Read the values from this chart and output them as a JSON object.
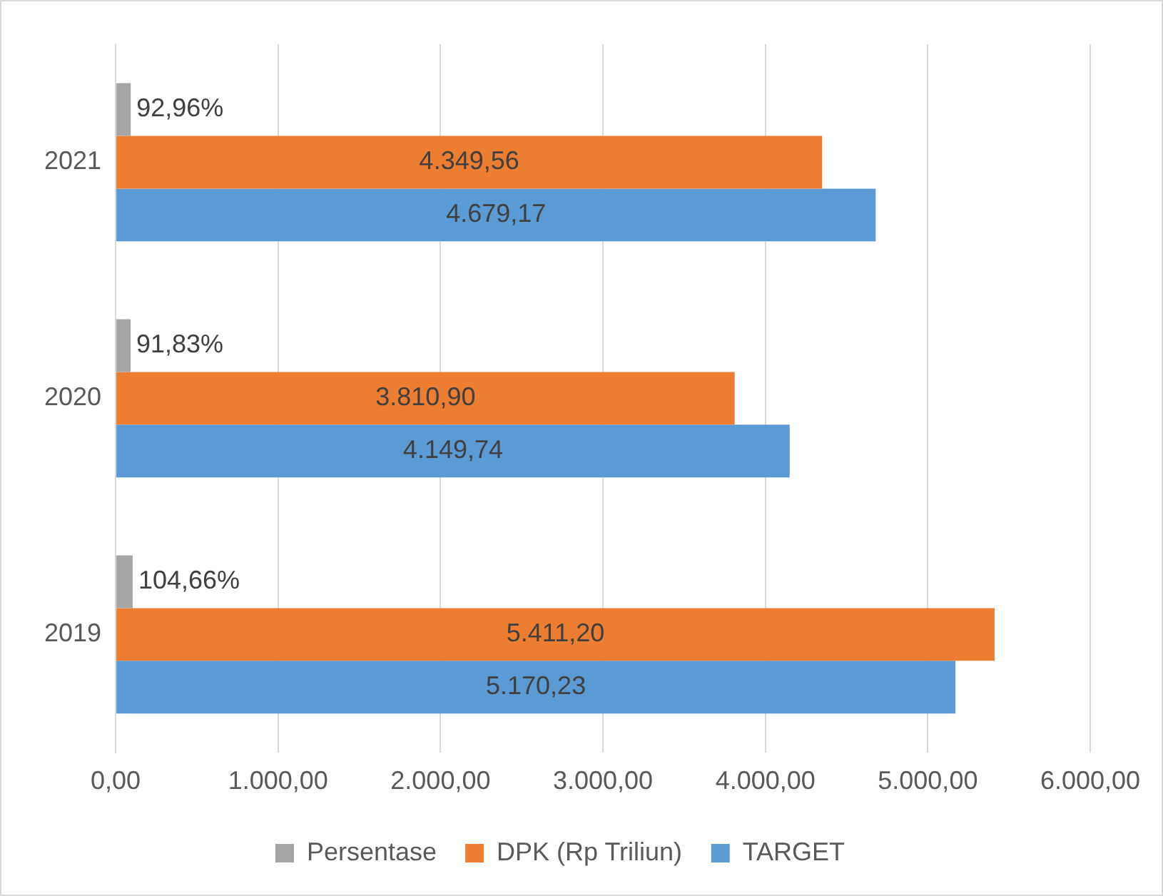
{
  "chart_data": {
    "type": "bar",
    "orientation": "horizontal",
    "categories": [
      "2021",
      "2020",
      "2019"
    ],
    "series": [
      {
        "name": "Persentase",
        "color": "#a5a5a5",
        "values": [
          92.96,
          91.83,
          104.66
        ],
        "value_labels": [
          "92,96%",
          "91,83%",
          "104,66%"
        ]
      },
      {
        "name": "DPK (Rp Triliun)",
        "color": "#ed7d31",
        "values": [
          4349.56,
          3810.9,
          5411.2
        ],
        "value_labels": [
          "4.349,56",
          "3.810,90",
          "5.411,20"
        ]
      },
      {
        "name": "TARGET",
        "color": "#5b9bd5",
        "values": [
          4679.17,
          4149.74,
          5170.23
        ],
        "value_labels": [
          "4.679,17",
          "4.149,74",
          "5.170,23"
        ]
      }
    ],
    "xlim": [
      0,
      6000
    ],
    "xticks": [
      {
        "value": 0,
        "label": "0,00"
      },
      {
        "value": 1000,
        "label": "1.000,00"
      },
      {
        "value": 2000,
        "label": "2.000,00"
      },
      {
        "value": 3000,
        "label": "3.000,00"
      },
      {
        "value": 4000,
        "label": "4.000,00"
      },
      {
        "value": 5000,
        "label": "5.000,00"
      },
      {
        "value": 6000,
        "label": "6.000,00"
      }
    ],
    "grid": "x",
    "legend": "bottom"
  }
}
